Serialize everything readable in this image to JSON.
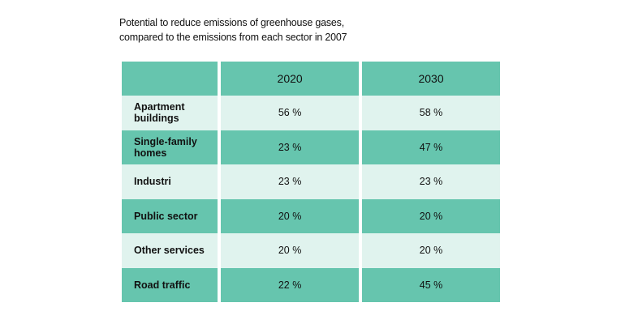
{
  "colors": {
    "dark_row": "#66c5ae",
    "light_row": "#e0f3ee",
    "separator": "#ffffff"
  },
  "chart_data": {
    "type": "table",
    "title_lines": [
      "Potential to reduce emissions of greenhouse gases,",
      "compared to the emissions from each sector in 2007"
    ],
    "columns": [
      "",
      "2020",
      "2030"
    ],
    "rows": [
      {
        "sector": "Apartment buildings",
        "values": [
          "56 %",
          "58 %"
        ]
      },
      {
        "sector": "Single-family homes",
        "values": [
          "23 %",
          "47 %"
        ]
      },
      {
        "sector": "Industri",
        "values": [
          "23 %",
          "23 %"
        ]
      },
      {
        "sector": "Public sector",
        "values": [
          "20 %",
          "20 %"
        ]
      },
      {
        "sector": "Other services",
        "values": [
          "20 %",
          "20 %"
        ]
      },
      {
        "sector": "Road traffic",
        "values": [
          "22 %",
          "45 %"
        ]
      }
    ],
    "series": [
      {
        "name": "2020",
        "values": [
          56,
          23,
          23,
          20,
          20,
          22
        ]
      },
      {
        "name": "2030",
        "values": [
          58,
          47,
          23,
          20,
          20,
          45
        ]
      }
    ],
    "unit": "%"
  }
}
